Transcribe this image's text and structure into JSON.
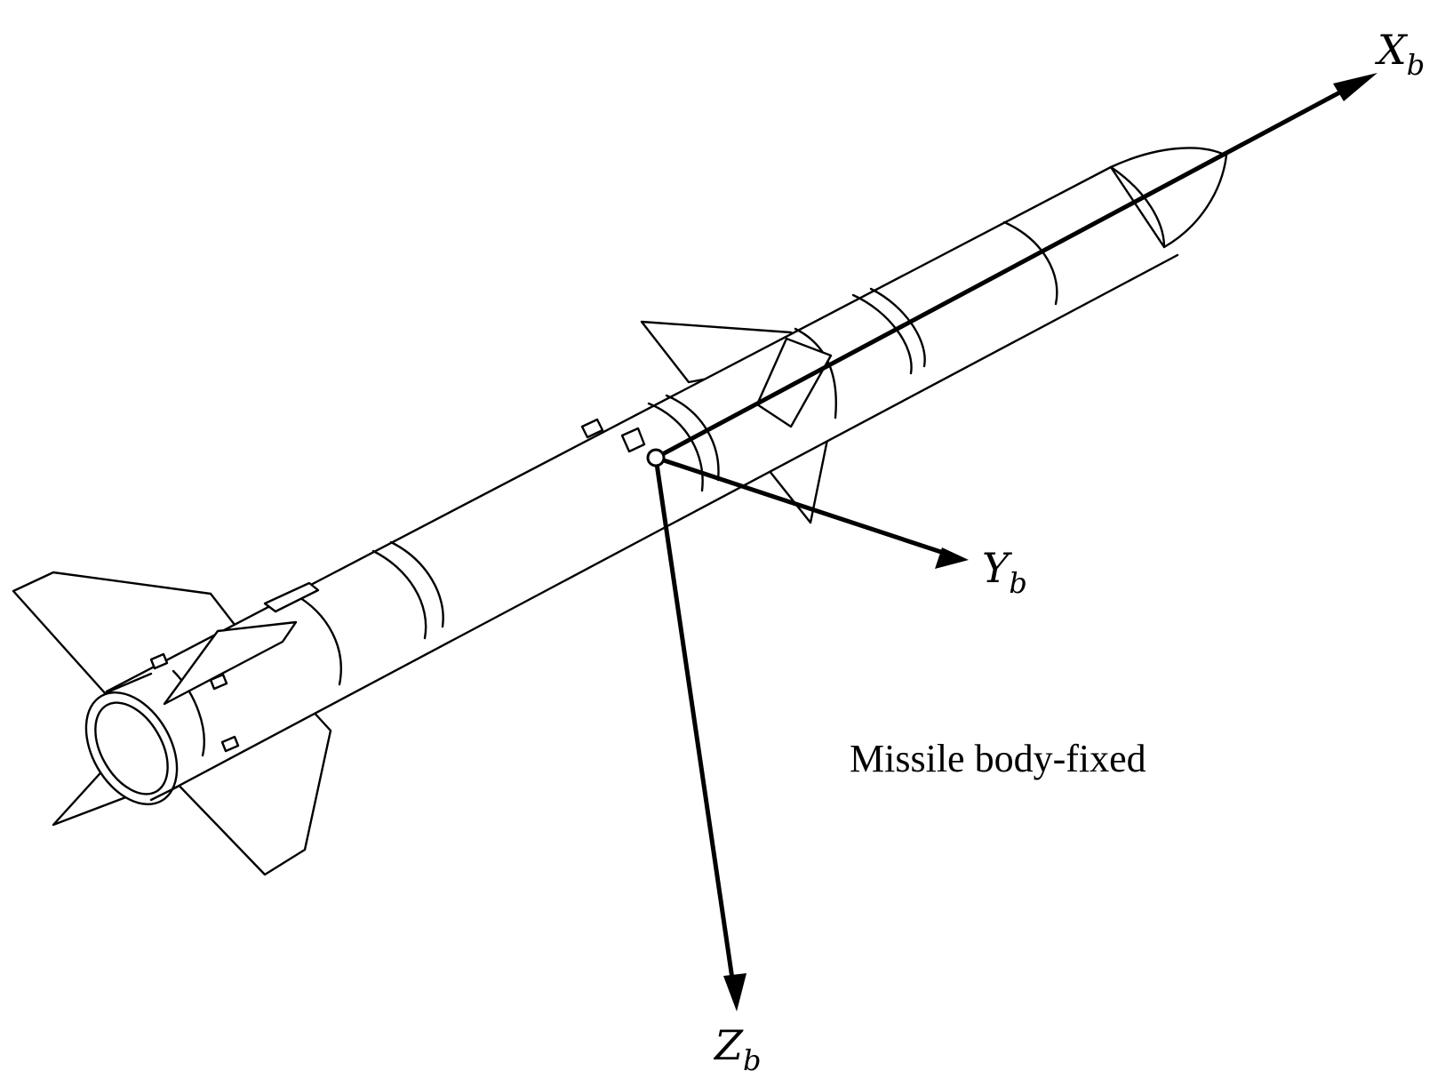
{
  "diagram": {
    "axes": {
      "x": {
        "letter": "X",
        "subscript": "b"
      },
      "y": {
        "letter": "Y",
        "subscript": "b"
      },
      "z": {
        "letter": "Z",
        "subscript": "b"
      }
    },
    "caption": "Missile body-fixed"
  }
}
